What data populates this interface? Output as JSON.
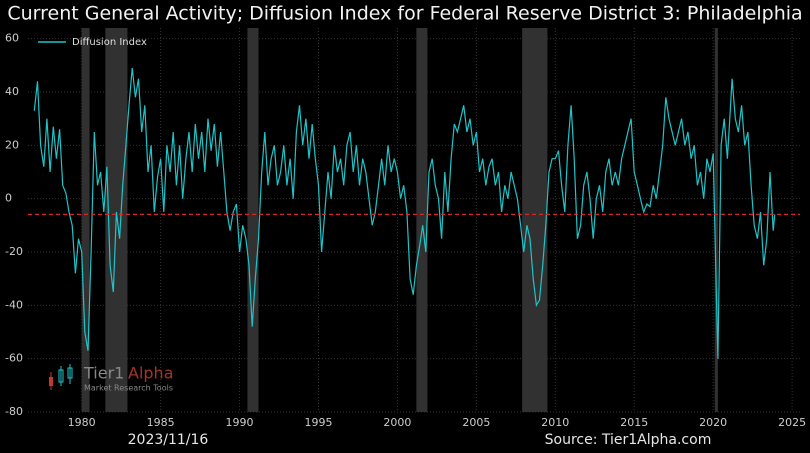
{
  "chart_data": {
    "type": "line",
    "title": "Current General Activity; Diffusion Index for Federal Reserve District 3: Philadelphia",
    "date": "2023/11/16",
    "source": "Source: Tier1Alpha.com",
    "logo": {
      "name": "Tier1",
      "name2": "Alpha",
      "tagline": "Market Research Tools"
    },
    "xlim": [
      1976.6,
      2025.5
    ],
    "ylim": [
      -80,
      64
    ],
    "xticks": [
      1980,
      1985,
      1990,
      1995,
      2000,
      2005,
      2010,
      2015,
      2020,
      2025
    ],
    "yticks": [
      -80,
      -60,
      -40,
      -20,
      0,
      20,
      40,
      60
    ],
    "grid": true,
    "legend": "upper left",
    "recessions": [
      [
        1980.0,
        1980.5
      ],
      [
        1981.5,
        1982.9
      ],
      [
        1990.5,
        1991.2
      ],
      [
        2001.2,
        2001.9
      ],
      [
        2007.9,
        2009.5
      ],
      [
        2020.1,
        2020.3
      ]
    ],
    "reference_line": -5.9,
    "reference_color": "#d62728",
    "x": [
      1977.0,
      1977.2,
      1977.4,
      1977.6,
      1977.8,
      1978.0,
      1978.2,
      1978.4,
      1978.6,
      1978.8,
      1979.0,
      1979.2,
      1979.4,
      1979.6,
      1979.8,
      1980.0,
      1980.2,
      1980.4,
      1980.6,
      1980.8,
      1981.0,
      1981.2,
      1981.4,
      1981.6,
      1981.8,
      1982.0,
      1982.2,
      1982.4,
      1982.6,
      1982.8,
      1983.0,
      1983.2,
      1983.4,
      1983.6,
      1983.8,
      1984.0,
      1984.2,
      1984.4,
      1984.6,
      1984.8,
      1985.0,
      1985.2,
      1985.4,
      1985.6,
      1985.8,
      1986.0,
      1986.2,
      1986.4,
      1986.6,
      1986.8,
      1987.0,
      1987.2,
      1987.4,
      1987.6,
      1987.8,
      1988.0,
      1988.2,
      1988.4,
      1988.6,
      1988.8,
      1989.0,
      1989.2,
      1989.4,
      1989.6,
      1989.8,
      1990.0,
      1990.2,
      1990.4,
      1990.6,
      1990.8,
      1991.0,
      1991.2,
      1991.4,
      1991.6,
      1991.8,
      1992.0,
      1992.2,
      1992.4,
      1992.6,
      1992.8,
      1993.0,
      1993.2,
      1993.4,
      1993.6,
      1993.8,
      1994.0,
      1994.2,
      1994.4,
      1994.6,
      1994.8,
      1995.0,
      1995.2,
      1995.4,
      1995.6,
      1995.8,
      1996.0,
      1996.2,
      1996.4,
      1996.6,
      1996.8,
      1997.0,
      1997.2,
      1997.4,
      1997.6,
      1997.8,
      1998.0,
      1998.2,
      1998.4,
      1998.6,
      1998.8,
      1999.0,
      1999.2,
      1999.4,
      1999.6,
      1999.8,
      2000.0,
      2000.2,
      2000.4,
      2000.6,
      2000.8,
      2001.0,
      2001.2,
      2001.4,
      2001.6,
      2001.8,
      2002.0,
      2002.2,
      2002.4,
      2002.6,
      2002.8,
      2003.0,
      2003.2,
      2003.4,
      2003.6,
      2003.8,
      2004.0,
      2004.2,
      2004.4,
      2004.6,
      2004.8,
      2005.0,
      2005.2,
      2005.4,
      2005.6,
      2005.8,
      2006.0,
      2006.2,
      2006.4,
      2006.6,
      2006.8,
      2007.0,
      2007.2,
      2007.4,
      2007.6,
      2007.8,
      2008.0,
      2008.2,
      2008.4,
      2008.6,
      2008.8,
      2009.0,
      2009.2,
      2009.4,
      2009.6,
      2009.8,
      2010.0,
      2010.2,
      2010.4,
      2010.6,
      2010.8,
      2011.0,
      2011.2,
      2011.4,
      2011.6,
      2011.8,
      2012.0,
      2012.2,
      2012.4,
      2012.6,
      2012.8,
      2013.0,
      2013.2,
      2013.4,
      2013.6,
      2013.8,
      2014.0,
      2014.2,
      2014.4,
      2014.6,
      2014.8,
      2015.0,
      2015.2,
      2015.4,
      2015.6,
      2015.8,
      2016.0,
      2016.2,
      2016.4,
      2016.6,
      2016.8,
      2017.0,
      2017.2,
      2017.4,
      2017.6,
      2017.8,
      2018.0,
      2018.2,
      2018.4,
      2018.6,
      2018.8,
      2019.0,
      2019.2,
      2019.4,
      2019.6,
      2019.8,
      2020.0,
      2020.2,
      2020.3,
      2020.5,
      2020.7,
      2020.9,
      2021.0,
      2021.2,
      2021.4,
      2021.6,
      2021.8,
      2022.0,
      2022.2,
      2022.4,
      2022.6,
      2022.8,
      2023.0,
      2023.2,
      2023.4,
      2023.6,
      2023.8,
      2023.9
    ],
    "series": [
      {
        "name": "Diffusion Index",
        "color": "#1fc4c8",
        "values": [
          33,
          44,
          20,
          12,
          30,
          10,
          27,
          15,
          26,
          5,
          2,
          -5,
          -10,
          -28,
          -15,
          -20,
          -50,
          -57,
          -20,
          25,
          5,
          10,
          -5,
          12,
          -25,
          -35,
          -5,
          -15,
          5,
          20,
          35,
          49,
          38,
          45,
          25,
          35,
          10,
          20,
          -5,
          8,
          15,
          -5,
          20,
          10,
          25,
          5,
          20,
          0,
          15,
          25,
          10,
          28,
          15,
          25,
          10,
          30,
          18,
          28,
          12,
          25,
          10,
          -5,
          -12,
          -5,
          -2,
          -20,
          -10,
          -15,
          -25,
          -48,
          -30,
          -15,
          10,
          25,
          5,
          15,
          20,
          5,
          10,
          20,
          5,
          15,
          0,
          25,
          35,
          20,
          30,
          15,
          28,
          15,
          5,
          -20,
          -5,
          10,
          0,
          20,
          10,
          15,
          5,
          20,
          25,
          10,
          20,
          5,
          15,
          10,
          0,
          -10,
          -5,
          5,
          15,
          5,
          20,
          10,
          15,
          10,
          0,
          5,
          -5,
          -30,
          -36,
          -25,
          -18,
          -10,
          -20,
          10,
          15,
          5,
          0,
          -15,
          10,
          -5,
          15,
          28,
          25,
          30,
          35,
          25,
          30,
          20,
          25,
          10,
          15,
          5,
          12,
          15,
          5,
          10,
          -5,
          5,
          0,
          10,
          5,
          0,
          -10,
          -20,
          -10,
          -15,
          -30,
          -40,
          -38,
          -25,
          -10,
          10,
          15,
          15,
          18,
          5,
          -5,
          20,
          35,
          15,
          -15,
          -10,
          5,
          10,
          0,
          -15,
          0,
          5,
          -5,
          10,
          15,
          5,
          10,
          5,
          15,
          20,
          25,
          30,
          10,
          5,
          0,
          -5,
          -2,
          -3,
          5,
          0,
          10,
          20,
          38,
          30,
          25,
          20,
          25,
          30,
          20,
          25,
          15,
          20,
          5,
          10,
          0,
          15,
          10,
          17,
          -35,
          -60,
          20,
          30,
          15,
          25,
          45,
          30,
          25,
          35,
          20,
          25,
          5,
          -10,
          -15,
          -5,
          -25,
          -15,
          10,
          -12,
          -5.9
        ]
      }
    ]
  }
}
